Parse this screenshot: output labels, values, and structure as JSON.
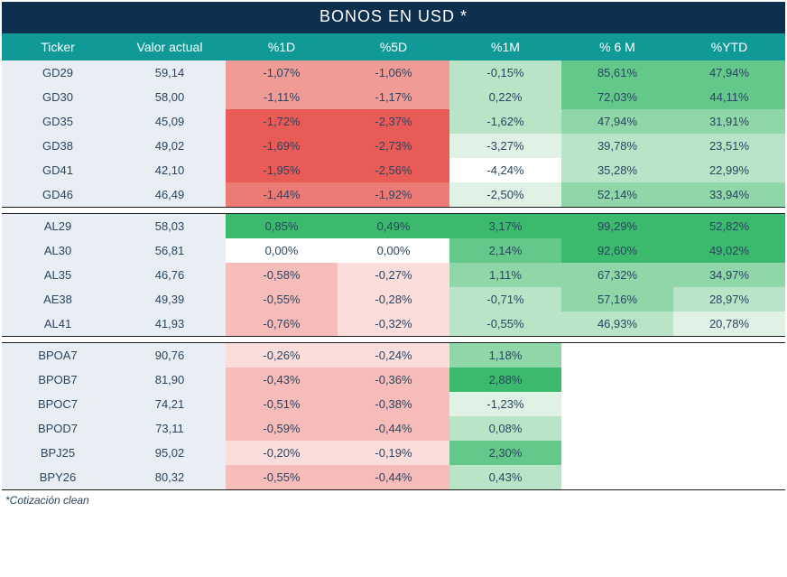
{
  "title": "BONOS EN USD *",
  "footnote": "*Cotización clean",
  "columns": [
    "Ticker",
    "Valor actual",
    "%1D",
    "%5D",
    "%1M",
    "% 6 M",
    "%YTD"
  ],
  "header_bg": "#0f9a97",
  "title_bg": "#0e2f4e",
  "left_col_bg": "#e9eef4",
  "text_color": "#2a4560",
  "heat": {
    "neg5": "#e85b56",
    "neg4": "#ec7b76",
    "neg3": "#f19b96",
    "neg2": "#f6bcb9",
    "neg1": "#fbdddb",
    "zero": "#ffffff",
    "pos1": "#e0f2e6",
    "pos2": "#b9e4c8",
    "pos3": "#8fd6a9",
    "pos4": "#63c88a",
    "pos5": "#3bb96d"
  },
  "groups": [
    {
      "rows": [
        {
          "ticker": "GD29",
          "value": "59,14",
          "d1": {
            "v": "-1,07%",
            "c": "neg3"
          },
          "d5": {
            "v": "-1,06%",
            "c": "neg3"
          },
          "m1": {
            "v": "-0,15%",
            "c": "pos2"
          },
          "m6": {
            "v": "85,61%",
            "c": "pos4"
          },
          "ytd": {
            "v": "47,94%",
            "c": "pos4"
          }
        },
        {
          "ticker": "GD30",
          "value": "58,00",
          "d1": {
            "v": "-1,11%",
            "c": "neg3"
          },
          "d5": {
            "v": "-1,17%",
            "c": "neg3"
          },
          "m1": {
            "v": "0,22%",
            "c": "pos2"
          },
          "m6": {
            "v": "72,03%",
            "c": "pos4"
          },
          "ytd": {
            "v": "44,11%",
            "c": "pos4"
          }
        },
        {
          "ticker": "GD35",
          "value": "45,09",
          "d1": {
            "v": "-1,72%",
            "c": "neg5"
          },
          "d5": {
            "v": "-2,37%",
            "c": "neg5"
          },
          "m1": {
            "v": "-1,62%",
            "c": "pos2"
          },
          "m6": {
            "v": "47,94%",
            "c": "pos3"
          },
          "ytd": {
            "v": "31,91%",
            "c": "pos3"
          }
        },
        {
          "ticker": "GD38",
          "value": "49,02",
          "d1": {
            "v": "-1,69%",
            "c": "neg5"
          },
          "d5": {
            "v": "-2,73%",
            "c": "neg5"
          },
          "m1": {
            "v": "-3,27%",
            "c": "pos1"
          },
          "m6": {
            "v": "39,78%",
            "c": "pos2"
          },
          "ytd": {
            "v": "23,51%",
            "c": "pos2"
          }
        },
        {
          "ticker": "GD41",
          "value": "42,10",
          "d1": {
            "v": "-1,95%",
            "c": "neg5"
          },
          "d5": {
            "v": "-2,56%",
            "c": "neg5"
          },
          "m1": {
            "v": "-4,24%",
            "c": "zero"
          },
          "m6": {
            "v": "35,28%",
            "c": "pos2"
          },
          "ytd": {
            "v": "22,99%",
            "c": "pos2"
          }
        },
        {
          "ticker": "GD46",
          "value": "46,49",
          "d1": {
            "v": "-1,44%",
            "c": "neg4"
          },
          "d5": {
            "v": "-1,92%",
            "c": "neg4"
          },
          "m1": {
            "v": "-2,50%",
            "c": "pos1"
          },
          "m6": {
            "v": "52,14%",
            "c": "pos3"
          },
          "ytd": {
            "v": "33,94%",
            "c": "pos3"
          }
        }
      ]
    },
    {
      "rows": [
        {
          "ticker": "AL29",
          "value": "58,03",
          "d1": {
            "v": "0,85%",
            "c": "pos5"
          },
          "d5": {
            "v": "0,49%",
            "c": "pos5"
          },
          "m1": {
            "v": "3,17%",
            "c": "pos5"
          },
          "m6": {
            "v": "99,29%",
            "c": "pos5"
          },
          "ytd": {
            "v": "52,82%",
            "c": "pos5"
          }
        },
        {
          "ticker": "AL30",
          "value": "56,81",
          "d1": {
            "v": "0,00%",
            "c": "zero"
          },
          "d5": {
            "v": "0,00%",
            "c": "zero"
          },
          "m1": {
            "v": "2,14%",
            "c": "pos4"
          },
          "m6": {
            "v": "92,60%",
            "c": "pos5"
          },
          "ytd": {
            "v": "49,02%",
            "c": "pos5"
          }
        },
        {
          "ticker": "AL35",
          "value": "46,76",
          "d1": {
            "v": "-0,58%",
            "c": "neg2"
          },
          "d5": {
            "v": "-0,27%",
            "c": "neg1"
          },
          "m1": {
            "v": "1,11%",
            "c": "pos3"
          },
          "m6": {
            "v": "67,32%",
            "c": "pos3"
          },
          "ytd": {
            "v": "34,97%",
            "c": "pos3"
          }
        },
        {
          "ticker": "AE38",
          "value": "49,39",
          "d1": {
            "v": "-0,55%",
            "c": "neg2"
          },
          "d5": {
            "v": "-0,28%",
            "c": "neg1"
          },
          "m1": {
            "v": "-0,71%",
            "c": "pos2"
          },
          "m6": {
            "v": "57,16%",
            "c": "pos3"
          },
          "ytd": {
            "v": "28,97%",
            "c": "pos2"
          }
        },
        {
          "ticker": "AL41",
          "value": "41,93",
          "d1": {
            "v": "-0,76%",
            "c": "neg2"
          },
          "d5": {
            "v": "-0,32%",
            "c": "neg1"
          },
          "m1": {
            "v": "-0,55%",
            "c": "pos2"
          },
          "m6": {
            "v": "46,93%",
            "c": "pos2"
          },
          "ytd": {
            "v": "20,78%",
            "c": "pos1"
          }
        }
      ]
    },
    {
      "rows": [
        {
          "ticker": "BPOA7",
          "value": "90,76",
          "d1": {
            "v": "-0,26%",
            "c": "neg1"
          },
          "d5": {
            "v": "-0,24%",
            "c": "neg1"
          },
          "m1": {
            "v": "1,18%",
            "c": "pos3"
          },
          "m6": null,
          "ytd": null
        },
        {
          "ticker": "BPOB7",
          "value": "81,90",
          "d1": {
            "v": "-0,43%",
            "c": "neg2"
          },
          "d5": {
            "v": "-0,36%",
            "c": "neg2"
          },
          "m1": {
            "v": "2,88%",
            "c": "pos5"
          },
          "m6": null,
          "ytd": null
        },
        {
          "ticker": "BPOC7",
          "value": "74,21",
          "d1": {
            "v": "-0,51%",
            "c": "neg2"
          },
          "d5": {
            "v": "-0,38%",
            "c": "neg2"
          },
          "m1": {
            "v": "-1,23%",
            "c": "pos1"
          },
          "m6": null,
          "ytd": null
        },
        {
          "ticker": "BPOD7",
          "value": "73,11",
          "d1": {
            "v": "-0,59%",
            "c": "neg2"
          },
          "d5": {
            "v": "-0,44%",
            "c": "neg2"
          },
          "m1": {
            "v": "0,08%",
            "c": "pos2"
          },
          "m6": null,
          "ytd": null
        },
        {
          "ticker": "BPJ25",
          "value": "95,02",
          "d1": {
            "v": "-0,20%",
            "c": "neg1"
          },
          "d5": {
            "v": "-0,19%",
            "c": "neg1"
          },
          "m1": {
            "v": "2,30%",
            "c": "pos4"
          },
          "m6": null,
          "ytd": null
        },
        {
          "ticker": "BPY26",
          "value": "80,32",
          "d1": {
            "v": "-0,55%",
            "c": "neg2"
          },
          "d5": {
            "v": "-0,44%",
            "c": "neg2"
          },
          "m1": {
            "v": "0,43%",
            "c": "pos2"
          },
          "m6": null,
          "ytd": null
        }
      ]
    }
  ]
}
